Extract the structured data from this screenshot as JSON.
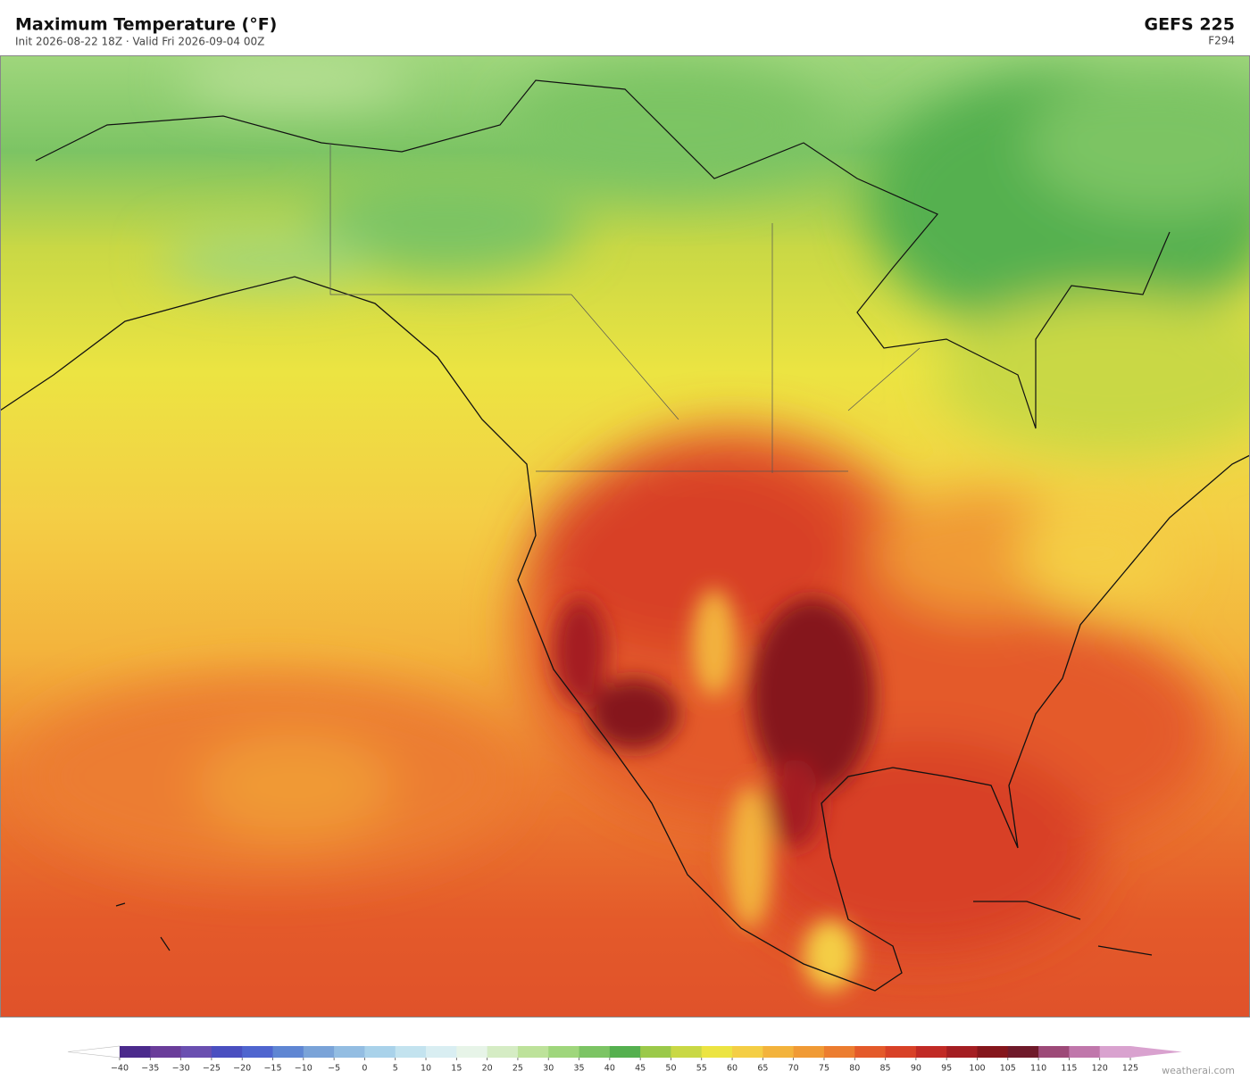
{
  "header": {
    "title": "Maximum Temperature  (°F)",
    "subtitle": "Init 2026-08-22 18Z  ·  Valid Fri 2026-09-04 00Z",
    "model": "GEFS  225",
    "forecast_hour": "F294"
  },
  "colorbar": {
    "ticks": [
      {
        "value": -40,
        "label": "−40"
      },
      {
        "value": -35,
        "label": "−35"
      },
      {
        "value": -30,
        "label": "−30"
      },
      {
        "value": -25,
        "label": "−25"
      },
      {
        "value": -20,
        "label": "−20"
      },
      {
        "value": -15,
        "label": "−15"
      },
      {
        "value": -10,
        "label": "−10"
      },
      {
        "value": -5,
        "label": "−5"
      },
      0,
      5,
      10,
      15,
      20,
      25,
      30,
      35,
      40,
      45,
      50,
      55,
      60,
      65,
      70,
      75,
      80,
      85,
      90,
      95,
      100,
      105,
      110,
      115,
      120,
      125
    ],
    "colors": [
      "#4b2a8c",
      "#6a3d9a",
      "#6a4fb0",
      "#4a4fc0",
      "#4f65cf",
      "#5f86d3",
      "#7aa3d8",
      "#93bde2",
      "#a9d2ea",
      "#c3e3ef",
      "#d9eef2",
      "#e7f4e8",
      "#d5ecc4",
      "#bde29a",
      "#9fd67c",
      "#7cc464",
      "#55b04f",
      "#9bc94a",
      "#c9d845",
      "#ece442",
      "#f4ce45",
      "#f3b33c",
      "#f09a35",
      "#ec7d30",
      "#e45a2a",
      "#d84127",
      "#c12a25",
      "#a41e22",
      "#85161c",
      "#6f1a2a",
      "#9d4a78",
      "#c077ab",
      "#d9a2cf"
    ],
    "under_color": "#ffffff",
    "over_color": "#d9a2cf"
  },
  "footer": {
    "watermark": "weatherai.com"
  }
}
